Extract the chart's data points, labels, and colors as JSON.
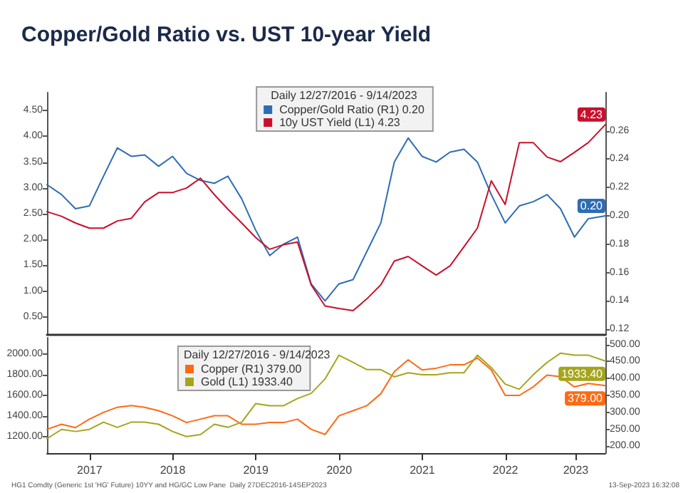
{
  "chart_data": [
    {
      "type": "line",
      "title": "Copper/Gold Ratio vs. UST 10-year Yield",
      "legend_title": "Daily 12/27/2016 - 9/14/2023",
      "legend": "top",
      "tick_labels": "y",
      "x": [
        "2016-12-27",
        "2017-03-01",
        "2017-05-01",
        "2017-07-01",
        "2017-09-01",
        "2017-11-01",
        "2018-01-01",
        "2018-03-01",
        "2018-05-01",
        "2018-07-01",
        "2018-09-01",
        "2018-11-01",
        "2019-01-01",
        "2019-03-01",
        "2019-05-01",
        "2019-07-01",
        "2019-09-01",
        "2019-11-01",
        "2020-01-01",
        "2020-03-01",
        "2020-05-01",
        "2020-07-01",
        "2020-09-01",
        "2020-11-01",
        "2021-01-01",
        "2021-03-01",
        "2021-05-01",
        "2021-07-01",
        "2021-09-01",
        "2021-11-01",
        "2022-01-01",
        "2022-03-01",
        "2022-05-01",
        "2022-07-01",
        "2022-09-01",
        "2022-11-01",
        "2023-01-01",
        "2023-03-01",
        "2023-05-01",
        "2023-07-01",
        "2023-09-14"
      ],
      "xlim": [
        "2016-12-27",
        "2023-09-14"
      ],
      "ylim": [
        0.15,
        4.85
      ],
      "yticks": [
        {
          "value": 0.5,
          "label": "0.50"
        },
        {
          "value": 1,
          "label": "1.00"
        },
        {
          "value": 1.5,
          "label": "1.50"
        },
        {
          "value": 2,
          "label": "2.00"
        },
        {
          "value": 2.5,
          "label": "2.50"
        },
        {
          "value": 3,
          "label": "3.00"
        },
        {
          "value": 3.5,
          "label": "3.50"
        },
        {
          "value": 4,
          "label": "4.00"
        },
        {
          "value": 4.5,
          "label": "4.50"
        }
      ],
      "y2lim": [
        0.116,
        0.287
      ],
      "y2ticks": [
        0.12,
        0.14,
        0.16,
        0.18,
        {
          "value": 0.2,
          "label": "0.20"
        },
        0.22,
        0.24,
        0.26
      ],
      "series": [
        {
          "name": "Copper/Gold Ratio (R1) 0.20",
          "color": "#2e6db4",
          "axis": "y2",
          "values": [
            0.222,
            0.215,
            0.205,
            0.207,
            0.228,
            0.248,
            0.242,
            0.243,
            0.235,
            0.242,
            0.23,
            0.225,
            0.223,
            0.228,
            0.212,
            0.19,
            0.172,
            0.18,
            0.185,
            0.152,
            0.14,
            0.152,
            0.155,
            0.175,
            0.195,
            0.238,
            0.255,
            0.242,
            0.238,
            0.245,
            0.247,
            0.238,
            0.215,
            0.195,
            0.207,
            0.21,
            0.215,
            0.205,
            0.185,
            0.198,
            0.2
          ],
          "value_labels": [
            null,
            null,
            null,
            null,
            null,
            null,
            null,
            null,
            null,
            null,
            null,
            null,
            null,
            null,
            null,
            null,
            null,
            null,
            null,
            null,
            null,
            null,
            null,
            null,
            null,
            null,
            null,
            null,
            null,
            null,
            null,
            null,
            null,
            null,
            null,
            null,
            null,
            null,
            null,
            null,
            "0.20"
          ]
        },
        {
          "name": "10y UST Yield (L1) 4.23",
          "color": "#c8102e",
          "axis": "y",
          "values": [
            2.54,
            2.45,
            2.32,
            2.22,
            2.22,
            2.36,
            2.41,
            2.73,
            2.91,
            2.91,
            3.0,
            3.19,
            2.87,
            2.59,
            2.32,
            2.04,
            1.81,
            1.9,
            1.95,
            1.12,
            0.71,
            0.66,
            0.62,
            0.85,
            1.12,
            1.58,
            1.67,
            1.49,
            1.31,
            1.49,
            1.86,
            2.22,
            3.14,
            2.68,
            3.88,
            3.88,
            3.6,
            3.51,
            3.69,
            3.88,
            4.23
          ],
          "value_labels": [
            null,
            null,
            null,
            null,
            null,
            null,
            null,
            null,
            null,
            null,
            null,
            null,
            null,
            null,
            null,
            null,
            null,
            null,
            null,
            null,
            null,
            null,
            null,
            null,
            null,
            null,
            null,
            null,
            null,
            null,
            null,
            null,
            null,
            null,
            null,
            null,
            null,
            null,
            null,
            null,
            "4.23"
          ]
        }
      ]
    },
    {
      "type": "line",
      "legend_title": "Daily 12/27/2016 - 9/14/2023",
      "legend": "top left",
      "annotations": [
        "HG1 Comdty (Generic 1st 'HG' Future) 10YY and HG/GC Low Pane  Daily 27DEC2016-14SEP2023",
        "13-Sep-2023 16:32:08"
      ],
      "x": [
        "2016-12-27",
        "2017-03-01",
        "2017-05-01",
        "2017-07-01",
        "2017-09-01",
        "2017-11-01",
        "2018-01-01",
        "2018-03-01",
        "2018-05-01",
        "2018-07-01",
        "2018-09-01",
        "2018-11-01",
        "2019-01-01",
        "2019-03-01",
        "2019-05-01",
        "2019-07-01",
        "2019-09-01",
        "2019-11-01",
        "2020-01-01",
        "2020-03-01",
        "2020-05-01",
        "2020-07-01",
        "2020-09-01",
        "2020-11-01",
        "2021-01-01",
        "2021-03-01",
        "2021-05-01",
        "2021-07-01",
        "2021-09-01",
        "2021-11-01",
        "2022-01-01",
        "2022-03-01",
        "2022-05-01",
        "2022-07-01",
        "2022-09-01",
        "2022-11-01",
        "2023-01-01",
        "2023-03-01",
        "2023-05-01",
        "2023-07-01",
        "2023-09-14"
      ],
      "xlim": [
        "2016-12-27",
        "2023-09-14"
      ],
      "xticks": [
        {
          "value": "2017-07-02",
          "label": "2017"
        },
        {
          "value": "2018-07-02",
          "label": "2018"
        },
        {
          "value": "2019-07-02",
          "label": "2019"
        },
        {
          "value": "2020-07-02",
          "label": "2020"
        },
        {
          "value": "2021-07-02",
          "label": "2021"
        },
        {
          "value": "2022-07-02",
          "label": "2022"
        },
        {
          "value": "2023-05-07",
          "label": "2023"
        }
      ],
      "ylim": [
        1040,
        2160
      ],
      "yticks": [
        {
          "value": 1200,
          "label": "1200.00"
        },
        {
          "value": 1400,
          "label": "1400.00"
        },
        {
          "value": 1600,
          "label": "1600.00"
        },
        {
          "value": 1800,
          "label": "1800.00"
        },
        {
          "value": 2000,
          "label": "2000.00"
        }
      ],
      "y2lim": [
        180,
        520
      ],
      "y2ticks": [
        {
          "value": 200,
          "label": "200.00"
        },
        {
          "value": 250,
          "label": "250.00"
        },
        {
          "value": 300,
          "label": "300.00"
        },
        {
          "value": 350,
          "label": "350.00"
        },
        {
          "value": 400,
          "label": "400.00"
        },
        {
          "value": 450,
          "label": "450.00"
        },
        {
          "value": 500,
          "label": "500.00"
        }
      ],
      "series": [
        {
          "name": "Copper (R1) 379.00",
          "color": "#ff6a13",
          "axis": "y2",
          "values": [
            250,
            265,
            255,
            280,
            300,
            315,
            320,
            315,
            305,
            290,
            270,
            280,
            290,
            290,
            265,
            265,
            270,
            270,
            280,
            250,
            235,
            290,
            305,
            320,
            355,
            420,
            455,
            425,
            430,
            440,
            440,
            460,
            425,
            350,
            350,
            375,
            410,
            405,
            375,
            385,
            379
          ],
          "value_labels": [
            null,
            null,
            null,
            null,
            null,
            null,
            null,
            null,
            null,
            null,
            null,
            null,
            null,
            null,
            null,
            null,
            null,
            null,
            null,
            null,
            null,
            null,
            null,
            null,
            null,
            null,
            null,
            null,
            null,
            null,
            null,
            null,
            null,
            null,
            null,
            null,
            null,
            null,
            null,
            null,
            "379.00"
          ]
        },
        {
          "name": "Gold (L1) 1933.40",
          "color": "#a5a51c",
          "axis": "y",
          "values": [
            1180,
            1270,
            1250,
            1270,
            1340,
            1290,
            1340,
            1340,
            1320,
            1250,
            1200,
            1220,
            1320,
            1290,
            1340,
            1520,
            1500,
            1500,
            1570,
            1620,
            1760,
            1990,
            1920,
            1850,
            1850,
            1780,
            1820,
            1800,
            1800,
            1820,
            1820,
            1990,
            1870,
            1710,
            1660,
            1800,
            1920,
            2010,
            1990,
            1990,
            1933.4
          ],
          "value_labels": [
            null,
            null,
            null,
            null,
            null,
            null,
            null,
            null,
            null,
            null,
            null,
            null,
            null,
            null,
            null,
            null,
            null,
            null,
            null,
            null,
            null,
            null,
            null,
            null,
            null,
            null,
            null,
            null,
            null,
            null,
            null,
            null,
            null,
            null,
            null,
            null,
            null,
            null,
            null,
            null,
            "1933.40"
          ]
        }
      ]
    }
  ]
}
